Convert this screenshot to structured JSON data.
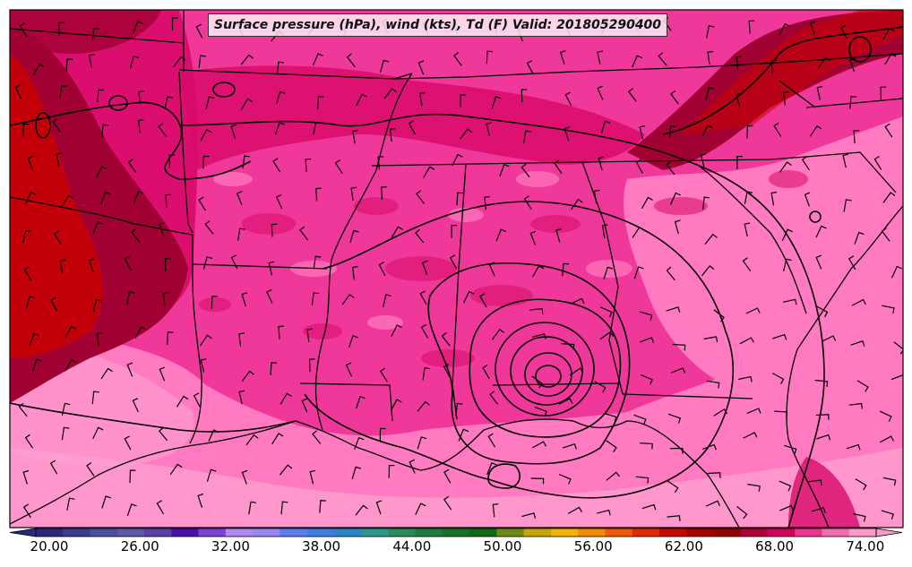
{
  "title": "Surface pressure (hPa), wind (kts), Td (F) Valid: 201805290400",
  "colorbar": {
    "tick_labels": [
      "20.00",
      "26.00",
      "32.00",
      "38.00",
      "44.00",
      "50.00",
      "56.00",
      "62.00",
      "68.00",
      "74.00"
    ],
    "colors": [
      "#2a2a7a",
      "#3b3d8f",
      "#4b4f9f",
      "#5a5aa8",
      "#5b3ea6",
      "#4a0fa8",
      "#7a43d8",
      "#b088f0",
      "#9a86f0",
      "#5a7df0",
      "#3f7fe0",
      "#2a86c8",
      "#2a9a8a",
      "#2a8a5a",
      "#1e7a3e",
      "#147226",
      "#0e6a14",
      "#6c8a14",
      "#c4a60a",
      "#f0b400",
      "#f48a00",
      "#f05a00",
      "#e02a00",
      "#c40a00",
      "#a80000",
      "#940000",
      "#b0003a",
      "#d4005a",
      "#ea3690",
      "#f56cb2",
      "#fb9ac8"
    ]
  },
  "palette": {
    "dewpoint_high": "#ff7ac0",
    "dewpoint_mid": "#f0389a",
    "dewpoint_deep": "#d80a6a",
    "dewpoint_dark": "#a00032",
    "dewpoint_max": "#cc0000",
    "dewpoint_light": "#ffa2d2"
  }
}
